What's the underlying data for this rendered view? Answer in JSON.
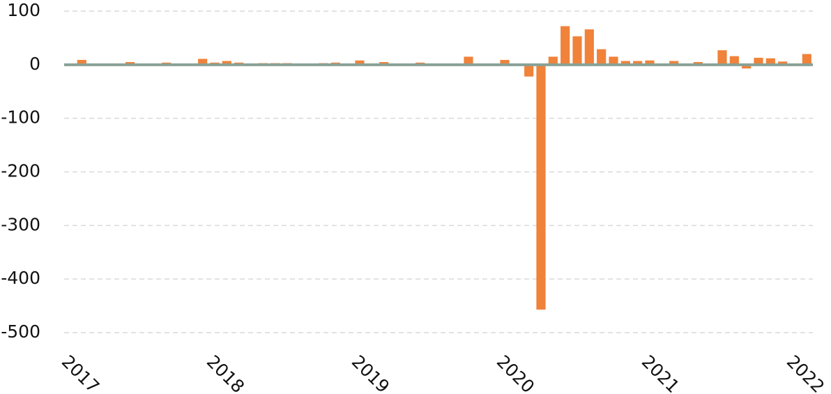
{
  "chart_data": {
    "type": "bar",
    "categories": [
      "2017",
      null,
      null,
      null,
      null,
      null,
      null,
      null,
      null,
      null,
      null,
      null,
      "2018",
      null,
      null,
      null,
      null,
      null,
      null,
      null,
      null,
      null,
      null,
      null,
      "2019",
      null,
      null,
      null,
      null,
      null,
      null,
      null,
      null,
      null,
      null,
      null,
      "2020",
      null,
      null,
      null,
      null,
      null,
      null,
      null,
      null,
      null,
      null,
      null,
      "2021",
      null,
      null,
      null,
      null,
      null,
      null,
      null,
      null,
      null,
      null,
      null,
      "2022",
      null
    ],
    "values": [
      1,
      9,
      1,
      1,
      0,
      5,
      1,
      1,
      4,
      1,
      1,
      11,
      4,
      7,
      4,
      1,
      3,
      3,
      3,
      1,
      1,
      3,
      4,
      1,
      8,
      2,
      5,
      2,
      1,
      4,
      1,
      1,
      1,
      15,
      2,
      1,
      9,
      1,
      -22,
      -457,
      15,
      72,
      53,
      66,
      29,
      15,
      7,
      7,
      8,
      1,
      7,
      1,
      5,
      1,
      27,
      16,
      -7,
      13,
      12,
      6,
      1,
      20
    ],
    "color": "#f0823a",
    "ylim": [
      -520,
      100
    ],
    "yticks": [
      100,
      0,
      -100,
      -200,
      -300,
      -400,
      -500
    ],
    "grid": true
  }
}
